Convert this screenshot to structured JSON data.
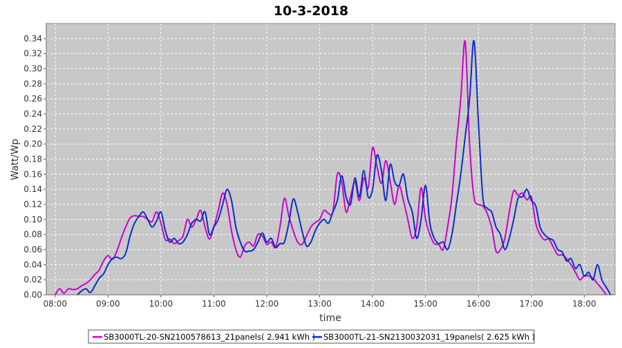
{
  "chart_data": {
    "type": "line",
    "title": "10-3-2018",
    "xlabel": "time",
    "ylabel": "Watt/Wp",
    "x_ticks": [
      "08:00",
      "09:00",
      "10:00",
      "11:00",
      "12:00",
      "13:00",
      "14:00",
      "15:00",
      "16:00",
      "17:00",
      "18:00"
    ],
    "y_ticks": [
      "0.00",
      "0.02",
      "0.04",
      "0.06",
      "0.08",
      "0.10",
      "0.12",
      "0.14",
      "0.16",
      "0.18",
      "0.20",
      "0.22",
      "0.24",
      "0.26",
      "0.28",
      "0.30",
      "0.32",
      "0.34"
    ],
    "ylim": [
      0,
      0.36
    ],
    "xlim": [
      "07:50",
      "18:35"
    ],
    "grid": true,
    "legend_position": "bottom",
    "series": [
      {
        "name": "SB3000TL-20-SN2100578613_21panels( 2.941 kWh )",
        "color": "#cc00cc",
        "points": [
          [
            "08:00",
            0.0
          ],
          [
            "08:05",
            0.008
          ],
          [
            "08:10",
            0.002
          ],
          [
            "08:15",
            0.008
          ],
          [
            "08:20",
            0.007
          ],
          [
            "08:25",
            0.008
          ],
          [
            "08:30",
            0.012
          ],
          [
            "08:35",
            0.015
          ],
          [
            "08:40",
            0.02
          ],
          [
            "08:45",
            0.027
          ],
          [
            "08:50",
            0.033
          ],
          [
            "08:55",
            0.045
          ],
          [
            "09:00",
            0.052
          ],
          [
            "09:05",
            0.047
          ],
          [
            "09:10",
            0.058
          ],
          [
            "09:15",
            0.075
          ],
          [
            "09:20",
            0.09
          ],
          [
            "09:25",
            0.102
          ],
          [
            "09:30",
            0.105
          ],
          [
            "09:35",
            0.104
          ],
          [
            "09:40",
            0.104
          ],
          [
            "09:45",
            0.1
          ],
          [
            "09:50",
            0.097
          ],
          [
            "09:55",
            0.11
          ],
          [
            "10:00",
            0.095
          ],
          [
            "10:05",
            0.073
          ],
          [
            "10:10",
            0.074
          ],
          [
            "10:15",
            0.068
          ],
          [
            "10:20",
            0.072
          ],
          [
            "10:25",
            0.078
          ],
          [
            "10:30",
            0.1
          ],
          [
            "10:35",
            0.09
          ],
          [
            "10:40",
            0.1
          ],
          [
            "10:45",
            0.112
          ],
          [
            "10:50",
            0.09
          ],
          [
            "10:55",
            0.074
          ],
          [
            "11:00",
            0.09
          ],
          [
            "11:05",
            0.112
          ],
          [
            "11:10",
            0.135
          ],
          [
            "11:15",
            0.12
          ],
          [
            "11:20",
            0.085
          ],
          [
            "11:25",
            0.06
          ],
          [
            "11:30",
            0.05
          ],
          [
            "11:35",
            0.065
          ],
          [
            "11:40",
            0.07
          ],
          [
            "11:45",
            0.065
          ],
          [
            "11:50",
            0.08
          ],
          [
            "11:55",
            0.078
          ],
          [
            "12:00",
            0.067
          ],
          [
            "12:05",
            0.07
          ],
          [
            "12:10",
            0.063
          ],
          [
            "12:15",
            0.09
          ],
          [
            "12:20",
            0.128
          ],
          [
            "12:25",
            0.105
          ],
          [
            "12:30",
            0.085
          ],
          [
            "12:35",
            0.07
          ],
          [
            "12:40",
            0.067
          ],
          [
            "12:45",
            0.078
          ],
          [
            "12:50",
            0.09
          ],
          [
            "12:55",
            0.096
          ],
          [
            "13:00",
            0.1
          ],
          [
            "13:05",
            0.112
          ],
          [
            "13:10",
            0.108
          ],
          [
            "13:15",
            0.11
          ],
          [
            "13:20",
            0.16
          ],
          [
            "13:25",
            0.15
          ],
          [
            "13:30",
            0.11
          ],
          [
            "13:35",
            0.13
          ],
          [
            "13:40",
            0.15
          ],
          [
            "13:45",
            0.125
          ],
          [
            "13:50",
            0.155
          ],
          [
            "13:55",
            0.142
          ],
          [
            "14:00",
            0.195
          ],
          [
            "14:05",
            0.17
          ],
          [
            "14:10",
            0.148
          ],
          [
            "14:15",
            0.178
          ],
          [
            "14:20",
            0.15
          ],
          [
            "14:25",
            0.12
          ],
          [
            "14:30",
            0.145
          ],
          [
            "14:35",
            0.125
          ],
          [
            "14:40",
            0.1
          ],
          [
            "14:45",
            0.075
          ],
          [
            "14:50",
            0.09
          ],
          [
            "14:55",
            0.142
          ],
          [
            "15:00",
            0.1
          ],
          [
            "15:05",
            0.08
          ],
          [
            "15:10",
            0.068
          ],
          [
            "15:15",
            0.067
          ],
          [
            "15:20",
            0.06
          ],
          [
            "15:25",
            0.09
          ],
          [
            "15:30",
            0.13
          ],
          [
            "15:35",
            0.2
          ],
          [
            "15:40",
            0.26
          ],
          [
            "15:45",
            0.336
          ],
          [
            "15:50",
            0.2
          ],
          [
            "15:55",
            0.13
          ],
          [
            "16:00",
            0.12
          ],
          [
            "16:05",
            0.118
          ],
          [
            "16:10",
            0.108
          ],
          [
            "16:15",
            0.09
          ],
          [
            "16:20",
            0.058
          ],
          [
            "16:25",
            0.06
          ],
          [
            "16:30",
            0.075
          ],
          [
            "16:35",
            0.11
          ],
          [
            "16:40",
            0.138
          ],
          [
            "16:45",
            0.132
          ],
          [
            "16:50",
            0.135
          ],
          [
            "16:55",
            0.126
          ],
          [
            "17:00",
            0.13
          ],
          [
            "17:05",
            0.095
          ],
          [
            "17:10",
            0.08
          ],
          [
            "17:15",
            0.073
          ],
          [
            "17:20",
            0.074
          ],
          [
            "17:25",
            0.063
          ],
          [
            "17:30",
            0.053
          ],
          [
            "17:35",
            0.053
          ],
          [
            "17:40",
            0.048
          ],
          [
            "17:45",
            0.04
          ],
          [
            "17:50",
            0.03
          ],
          [
            "17:55",
            0.02
          ],
          [
            "18:00",
            0.025
          ],
          [
            "18:05",
            0.025
          ],
          [
            "18:10",
            0.022
          ],
          [
            "18:15",
            0.015
          ],
          [
            "18:20",
            0.008
          ],
          [
            "18:25",
            0.0
          ]
        ]
      },
      {
        "name": "SB3000TL-21-SN2130032031_19panels( 2.625 kWh )",
        "color": "#0a2ccc",
        "points": [
          [
            "08:25",
            0.0
          ],
          [
            "08:30",
            0.005
          ],
          [
            "08:35",
            0.008
          ],
          [
            "08:40",
            0.003
          ],
          [
            "08:45",
            0.012
          ],
          [
            "08:50",
            0.022
          ],
          [
            "08:55",
            0.028
          ],
          [
            "09:00",
            0.04
          ],
          [
            "09:05",
            0.048
          ],
          [
            "09:10",
            0.05
          ],
          [
            "09:15",
            0.048
          ],
          [
            "09:20",
            0.055
          ],
          [
            "09:25",
            0.078
          ],
          [
            "09:30",
            0.095
          ],
          [
            "09:35",
            0.104
          ],
          [
            "09:40",
            0.11
          ],
          [
            "09:45",
            0.1
          ],
          [
            "09:50",
            0.09
          ],
          [
            "09:55",
            0.098
          ],
          [
            "10:00",
            0.11
          ],
          [
            "10:05",
            0.085
          ],
          [
            "10:10",
            0.07
          ],
          [
            "10:15",
            0.075
          ],
          [
            "10:20",
            0.068
          ],
          [
            "10:25",
            0.07
          ],
          [
            "10:30",
            0.08
          ],
          [
            "10:35",
            0.095
          ],
          [
            "10:40",
            0.1
          ],
          [
            "10:45",
            0.098
          ],
          [
            "10:50",
            0.11
          ],
          [
            "10:55",
            0.08
          ],
          [
            "11:00",
            0.09
          ],
          [
            "11:05",
            0.1
          ],
          [
            "11:10",
            0.12
          ],
          [
            "11:15",
            0.14
          ],
          [
            "11:20",
            0.125
          ],
          [
            "11:25",
            0.09
          ],
          [
            "11:30",
            0.07
          ],
          [
            "11:35",
            0.058
          ],
          [
            "11:40",
            0.058
          ],
          [
            "11:45",
            0.06
          ],
          [
            "11:50",
            0.07
          ],
          [
            "11:55",
            0.082
          ],
          [
            "12:00",
            0.07
          ],
          [
            "12:05",
            0.075
          ],
          [
            "12:10",
            0.063
          ],
          [
            "12:15",
            0.068
          ],
          [
            "12:20",
            0.07
          ],
          [
            "12:25",
            0.095
          ],
          [
            "12:30",
            0.127
          ],
          [
            "12:35",
            0.11
          ],
          [
            "12:40",
            0.085
          ],
          [
            "12:45",
            0.065
          ],
          [
            "12:50",
            0.07
          ],
          [
            "12:55",
            0.085
          ],
          [
            "13:00",
            0.095
          ],
          [
            "13:05",
            0.1
          ],
          [
            "13:10",
            0.095
          ],
          [
            "13:15",
            0.11
          ],
          [
            "13:20",
            0.125
          ],
          [
            "13:25",
            0.158
          ],
          [
            "13:30",
            0.13
          ],
          [
            "13:35",
            0.12
          ],
          [
            "13:40",
            0.155
          ],
          [
            "13:45",
            0.13
          ],
          [
            "13:50",
            0.165
          ],
          [
            "13:55",
            0.13
          ],
          [
            "14:00",
            0.14
          ],
          [
            "14:05",
            0.185
          ],
          [
            "14:10",
            0.165
          ],
          [
            "14:15",
            0.125
          ],
          [
            "14:20",
            0.173
          ],
          [
            "14:25",
            0.15
          ],
          [
            "14:30",
            0.145
          ],
          [
            "14:35",
            0.16
          ],
          [
            "14:40",
            0.127
          ],
          [
            "14:45",
            0.11
          ],
          [
            "14:50",
            0.075
          ],
          [
            "14:55",
            0.1
          ],
          [
            "15:00",
            0.145
          ],
          [
            "15:05",
            0.095
          ],
          [
            "15:10",
            0.075
          ],
          [
            "15:15",
            0.068
          ],
          [
            "15:20",
            0.07
          ],
          [
            "15:25",
            0.06
          ],
          [
            "15:30",
            0.08
          ],
          [
            "15:35",
            0.12
          ],
          [
            "15:40",
            0.16
          ],
          [
            "15:45",
            0.21
          ],
          [
            "15:50",
            0.26
          ],
          [
            "15:55",
            0.337
          ],
          [
            "16:00",
            0.23
          ],
          [
            "16:05",
            0.13
          ],
          [
            "16:10",
            0.115
          ],
          [
            "16:15",
            0.11
          ],
          [
            "16:20",
            0.09
          ],
          [
            "16:25",
            0.08
          ],
          [
            "16:30",
            0.06
          ],
          [
            "16:35",
            0.075
          ],
          [
            "16:40",
            0.1
          ],
          [
            "16:45",
            0.128
          ],
          [
            "16:50",
            0.13
          ],
          [
            "16:55",
            0.14
          ],
          [
            "17:00",
            0.125
          ],
          [
            "17:05",
            0.118
          ],
          [
            "17:10",
            0.09
          ],
          [
            "17:15",
            0.08
          ],
          [
            "17:20",
            0.075
          ],
          [
            "17:25",
            0.072
          ],
          [
            "17:30",
            0.06
          ],
          [
            "17:35",
            0.057
          ],
          [
            "17:40",
            0.045
          ],
          [
            "17:45",
            0.048
          ],
          [
            "17:50",
            0.035
          ],
          [
            "17:55",
            0.04
          ],
          [
            "18:00",
            0.025
          ],
          [
            "18:05",
            0.03
          ],
          [
            "18:10",
            0.02
          ],
          [
            "18:15",
            0.04
          ],
          [
            "18:20",
            0.02
          ],
          [
            "18:25",
            0.01
          ],
          [
            "18:30",
            0.0
          ]
        ]
      }
    ]
  }
}
